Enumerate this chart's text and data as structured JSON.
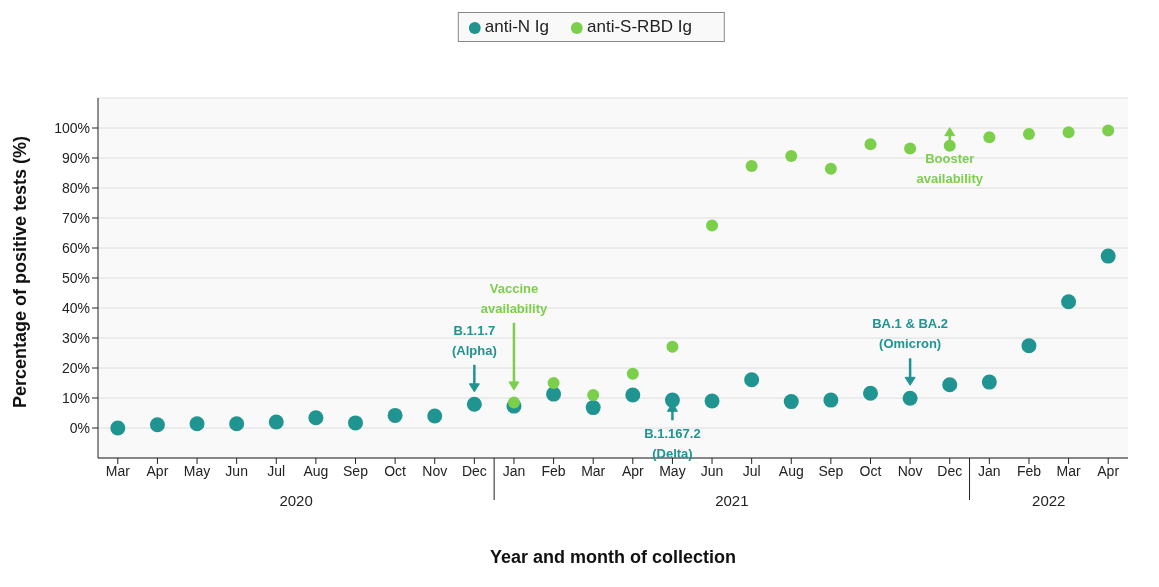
{
  "chart_data": {
    "type": "scatter",
    "xlabel": "Year and month of collection",
    "ylabel": "Percentage of positive tests (%)",
    "categories": [
      "Mar",
      "Apr",
      "May",
      "Jun",
      "Jul",
      "Aug",
      "Sep",
      "Oct",
      "Nov",
      "Dec",
      "Jan",
      "Feb",
      "Mar",
      "Apr",
      "May",
      "Jun",
      "Jul",
      "Aug",
      "Sep",
      "Oct",
      "Nov",
      "Dec",
      "Jan",
      "Feb",
      "Mar",
      "Apr"
    ],
    "series": [
      {
        "name": "anti-N Ig",
        "color": "#1f9490",
        "values": [
          0,
          1.1,
          1.4,
          1.4,
          2,
          3.4,
          1.7,
          4.2,
          4,
          7.9,
          7.3,
          11.3,
          6.8,
          11,
          9.3,
          9,
          16.1,
          8.8,
          9.3,
          11.6,
          9.9,
          14.4,
          15.3,
          27.4,
          42.1,
          57.3
        ]
      },
      {
        "name": "anti-S-RBD Ig",
        "color": "#7ccf4a",
        "values": [
          null,
          null,
          null,
          null,
          null,
          null,
          null,
          null,
          null,
          null,
          8.5,
          15,
          11,
          18.1,
          27.1,
          67.5,
          87.3,
          90.7,
          86.4,
          94.6,
          93.2,
          94.1,
          96.9,
          98,
          98.6,
          99.2
        ]
      }
    ],
    "ylim": [
      -10,
      110
    ],
    "yticks": [
      {
        "value": 0,
        "label": "0%"
      },
      {
        "value": 10,
        "label": "10%"
      },
      {
        "value": 20,
        "label": "20%"
      },
      {
        "value": 30,
        "label": "30%"
      },
      {
        "value": 40,
        "label": "40%"
      },
      {
        "value": 50,
        "label": "50%"
      },
      {
        "value": 60,
        "label": "60%"
      },
      {
        "value": 70,
        "label": "70%"
      },
      {
        "value": 80,
        "label": "80%"
      },
      {
        "value": 90,
        "label": "90%"
      },
      {
        "value": 100,
        "label": "100%"
      }
    ],
    "grid": "y",
    "legend": "top",
    "marker": "circle",
    "annotations": [
      "B.1.1.7 (Alpha)",
      "Vaccine availability",
      "B.1.167.2 (Delta)",
      "BA.1 & BA.2 (Omicron)",
      "Booster availability",
      "2020",
      "2021",
      "2022"
    ]
  }
}
